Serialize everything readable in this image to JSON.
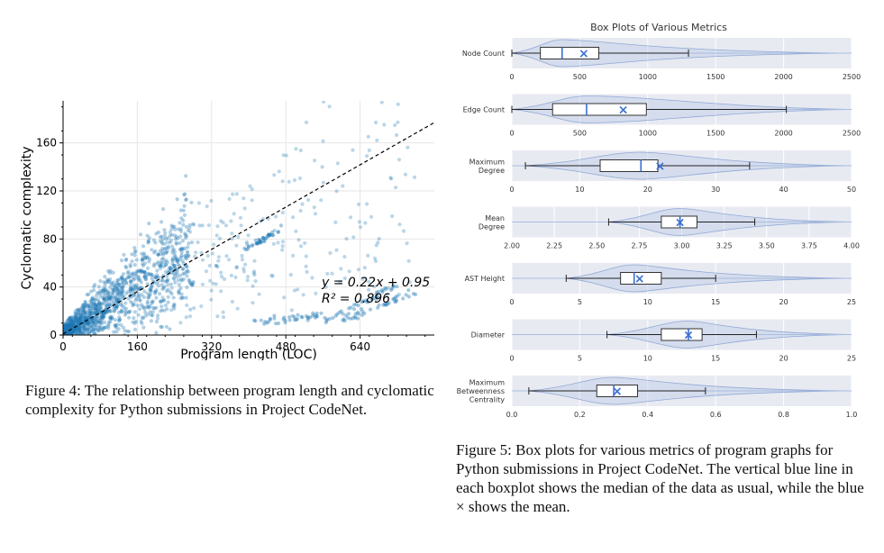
{
  "figure4": {
    "caption": "Figure 4: The relationship between program length and cyclomatic complexity for Python submissions in Project CodeNet.",
    "chart_data": {
      "type": "scatter",
      "title": "",
      "xlabel": "Program length (LOC)",
      "ylabel": "Cyclomatic complexity",
      "xlim": [
        0,
        800
      ],
      "ylim": [
        0,
        195
      ],
      "xticks": [
        "0",
        "160",
        "320",
        "480",
        "640"
      ],
      "yticks": [
        "0",
        "40",
        "80",
        "120",
        "160"
      ],
      "fit_equation": "y = 0.22x + 0.95",
      "fit_r2": "R² = 0.896",
      "fit": {
        "slope": 0.22,
        "intercept": 0.95
      },
      "point_color": "#1f77b4",
      "grid": true
    }
  },
  "figure5": {
    "caption": "Figure 5: Box plots for various metrics of program graphs for Python submissions in Project CodeNet. The vertical blue line in each boxplot shows the median of the data as usual, while the blue × shows the mean.",
    "chart_data": {
      "type": "boxplot",
      "title": "Box Plots of Various Metrics",
      "panels": [
        {
          "label": "Node Count",
          "ticks": [
            "0",
            "500",
            "1000",
            "1500",
            "2000",
            "2500"
          ],
          "xlim": [
            0,
            2500
          ],
          "whisker_low": 0,
          "q1": 210,
          "median": 370,
          "q3": 640,
          "whisker_high": 1300,
          "mean": 530
        },
        {
          "label": "Edge Count",
          "ticks": [
            "0",
            "500",
            "1000",
            "1500",
            "2000",
            "2500"
          ],
          "xlim": [
            0,
            2500
          ],
          "whisker_low": 0,
          "q1": 300,
          "median": 550,
          "q3": 990,
          "whisker_high": 2020,
          "mean": 820
        },
        {
          "label": "Maximum Degree",
          "ticks": [
            "0",
            "10",
            "20",
            "30",
            "40",
            "50"
          ],
          "xlim": [
            0,
            50
          ],
          "whisker_low": 2,
          "q1": 13,
          "median": 19,
          "q3": 21.5,
          "whisker_high": 35,
          "mean": 21.8
        },
        {
          "label": "Mean Degree",
          "ticks": [
            "2.00",
            "2.25",
            "2.50",
            "2.75",
            "3.00",
            "3.25",
            "3.50",
            "3.75",
            "4.00"
          ],
          "xlim": [
            2,
            4
          ],
          "whisker_low": 2.57,
          "q1": 2.88,
          "median": 2.99,
          "q3": 3.09,
          "whisker_high": 3.43,
          "mean": 2.99
        },
        {
          "label": "AST Height",
          "ticks": [
            "0",
            "5",
            "10",
            "15",
            "20",
            "25"
          ],
          "xlim": [
            0,
            25
          ],
          "whisker_low": 4,
          "q1": 8,
          "median": 9,
          "q3": 11,
          "whisker_high": 15,
          "mean": 9.4
        },
        {
          "label": "Diameter",
          "ticks": [
            "0",
            "5",
            "10",
            "15",
            "20",
            "25"
          ],
          "xlim": [
            0,
            25
          ],
          "whisker_low": 7,
          "q1": 11,
          "median": 13,
          "q3": 14,
          "whisker_high": 18,
          "mean": 13
        },
        {
          "label": "Maximum Betweenness Centrality",
          "ticks": [
            "0.0",
            "0.2",
            "0.4",
            "0.6",
            "0.8",
            "1.0"
          ],
          "xlim": [
            0,
            1
          ],
          "whisker_low": 0.05,
          "q1": 0.25,
          "median": 0.3,
          "q3": 0.37,
          "whisker_high": 0.57,
          "mean": 0.31
        }
      ],
      "mean_marker": "×",
      "violin_color": "#aec3e6",
      "panel_bg": "#e8eaf2",
      "median_color": "#3b6fd1"
    }
  }
}
